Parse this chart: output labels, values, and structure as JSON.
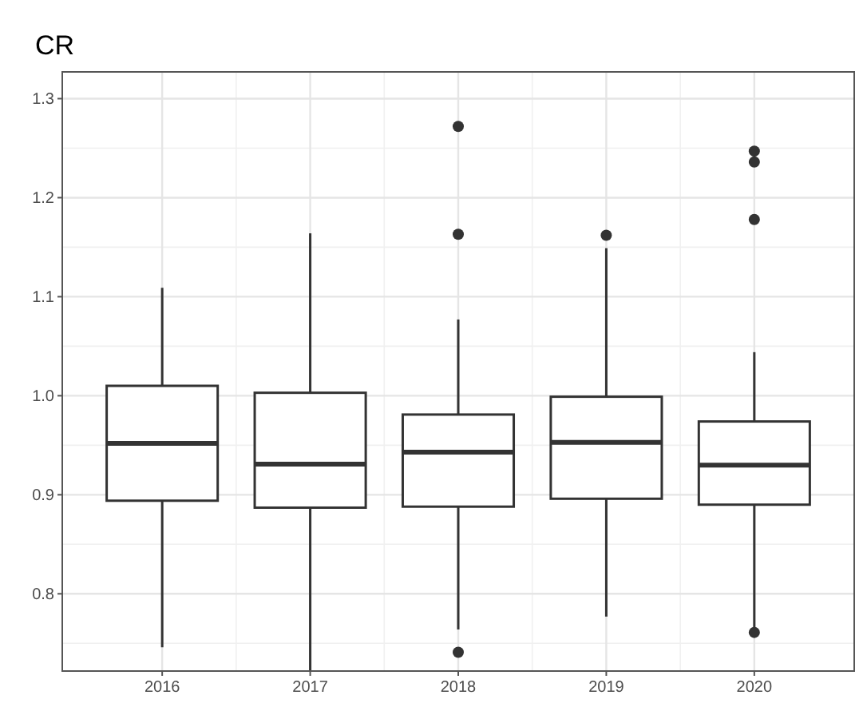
{
  "chart_data": {
    "type": "box",
    "title": "CR",
    "categories": [
      "2016",
      "2017",
      "2018",
      "2019",
      "2020"
    ],
    "boxes": [
      {
        "low": 0.746,
        "q1": 0.894,
        "median": 0.952,
        "q3": 1.01,
        "high": 1.109
      },
      {
        "low": 0.722,
        "q1": 0.887,
        "median": 0.931,
        "q3": 1.003,
        "high": 1.164
      },
      {
        "low": 0.764,
        "q1": 0.888,
        "median": 0.943,
        "q3": 0.981,
        "high": 1.077,
        "outliers": [
          1.272,
          1.163,
          0.741
        ]
      },
      {
        "low": 0.777,
        "q1": 0.896,
        "median": 0.953,
        "q3": 0.999,
        "high": 1.149,
        "outliers": [
          1.162
        ]
      },
      {
        "low": 0.766,
        "q1": 0.89,
        "median": 0.93,
        "q3": 0.974,
        "high": 1.044,
        "outliers": [
          1.247,
          1.236,
          1.178,
          0.761
        ]
      }
    ],
    "ylim": [
      0.722,
      1.327
    ],
    "yticks": [
      {
        "value": 0.8,
        "label": "0.8"
      },
      {
        "value": 0.9,
        "label": "0.9"
      },
      {
        "value": 1.0,
        "label": "1.0"
      },
      {
        "value": 1.1,
        "label": "1.1"
      },
      {
        "value": 1.2,
        "label": "1.2"
      },
      {
        "value": 1.3,
        "label": "1.3"
      }
    ],
    "grid": true
  }
}
